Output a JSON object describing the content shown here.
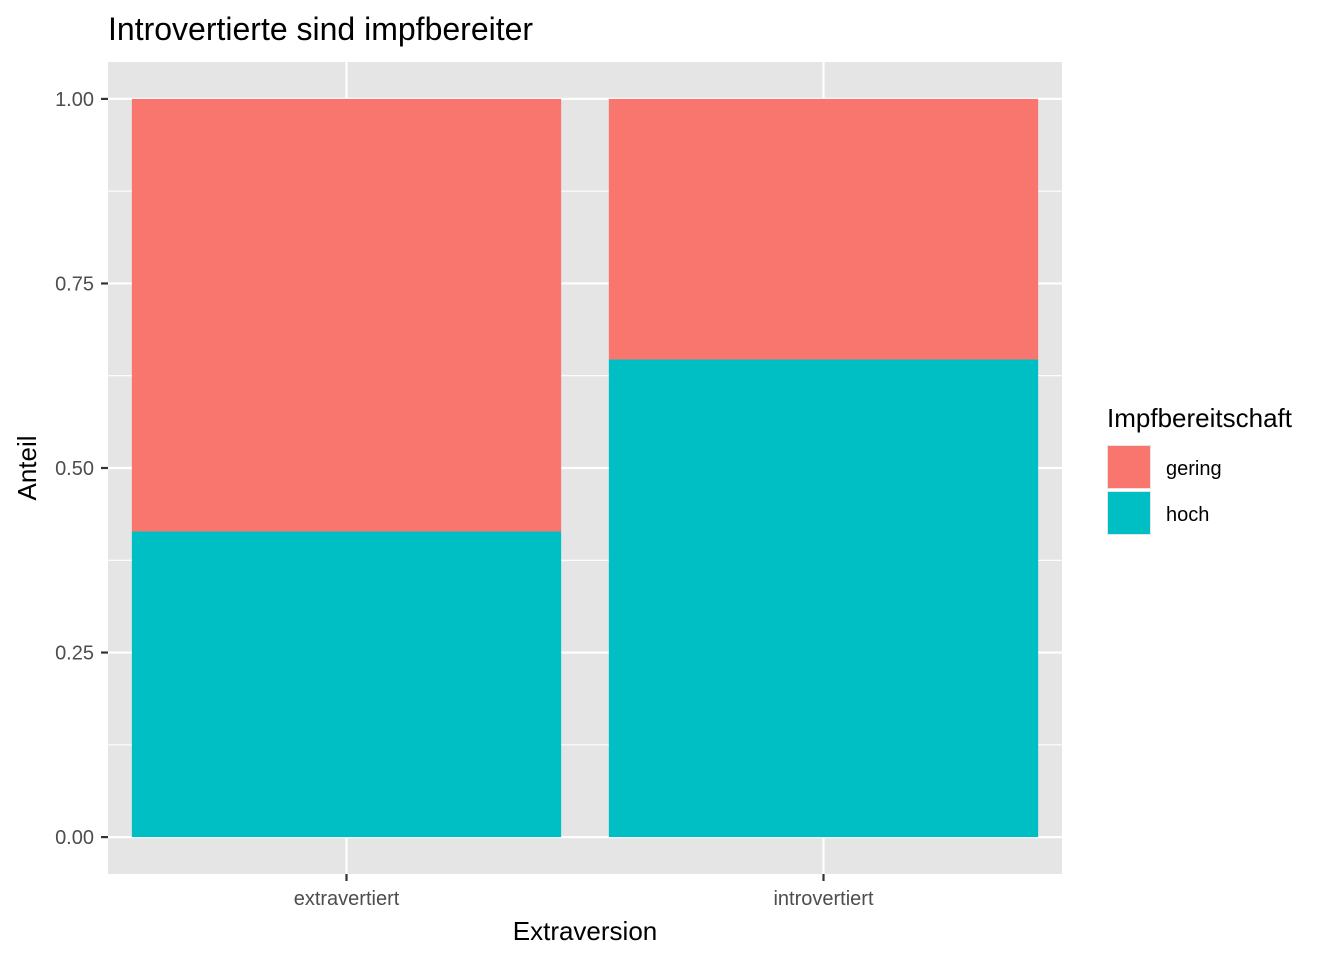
{
  "chart_data": {
    "type": "bar",
    "stacked": true,
    "title": "Introvertierte sind impfbereiter",
    "xlabel": "Extraversion",
    "ylabel": "Anteil",
    "categories": [
      "extravertiert",
      "introvertiert"
    ],
    "series": [
      {
        "name": "gering",
        "values": [
          0.586,
          0.353
        ],
        "color": "#F8766D"
      },
      {
        "name": "hoch",
        "values": [
          0.414,
          0.647
        ],
        "color": "#00BFC4"
      }
    ],
    "stack_order": [
      "hoch",
      "gering"
    ],
    "ylim": [
      -0.05,
      1.05
    ],
    "yticks": [
      0.0,
      0.25,
      0.5,
      0.75,
      1.0
    ],
    "ytick_labels": [
      "0.00",
      "0.25",
      "0.50",
      "0.75",
      "1.00"
    ],
    "legend": {
      "title": "Impfbereitschaft",
      "position": "right"
    },
    "grid": true,
    "colors": {
      "panel": "#E5E5E5",
      "grid": "#FFFFFF",
      "tick": "#333333"
    }
  }
}
